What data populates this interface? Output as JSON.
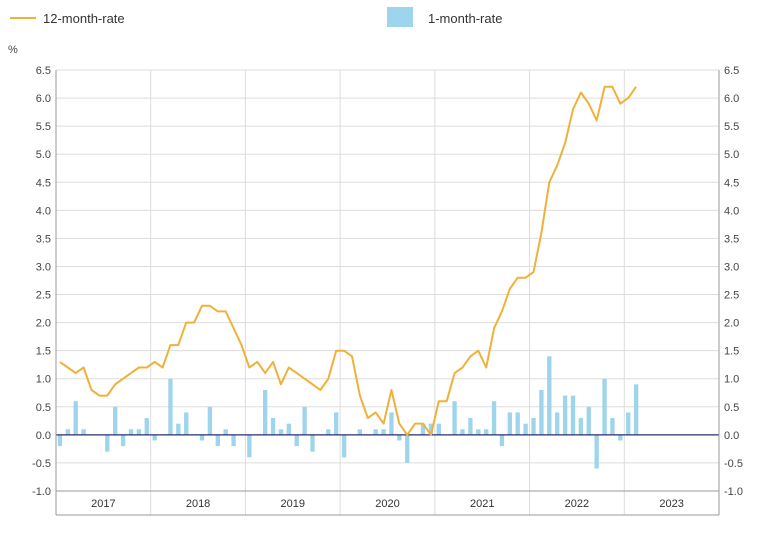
{
  "chart_data": {
    "type": "bar",
    "y_unit": "%",
    "ylim": [
      -1.0,
      6.5
    ],
    "y_ticks": [
      "-1.0",
      "-0.5",
      "0.0",
      "0.5",
      "1.0",
      "1.5",
      "2.0",
      "2.5",
      "3.0",
      "3.5",
      "4.0",
      "4.5",
      "5.0",
      "5.5",
      "6.0",
      "6.5"
    ],
    "years": [
      "2017",
      "2018",
      "2019",
      "2020",
      "2021",
      "2022",
      "2023"
    ],
    "months_per_year": 12,
    "grid": true,
    "legend_position": "top",
    "colors": {
      "line": "#f0b13b",
      "bar": "#9fd5ec",
      "zero_line": "#2b2f6b",
      "grid": "#dddddd",
      "frame": "#999999"
    },
    "series": [
      {
        "name": "12-month-rate",
        "type": "line",
        "values": [
          1.3,
          1.2,
          1.1,
          1.2,
          0.8,
          0.7,
          0.7,
          0.9,
          1.0,
          1.1,
          1.2,
          1.2,
          1.3,
          1.2,
          1.6,
          1.6,
          2.0,
          2.0,
          2.3,
          2.3,
          2.2,
          2.2,
          1.9,
          1.6,
          1.2,
          1.3,
          1.1,
          1.3,
          0.9,
          1.2,
          1.1,
          1.0,
          0.9,
          0.8,
          1.0,
          1.5,
          1.5,
          1.4,
          0.7,
          0.3,
          0.4,
          0.2,
          0.8,
          0.2,
          0.0,
          0.2,
          0.2,
          0.0,
          0.6,
          0.6,
          1.1,
          1.2,
          1.4,
          1.5,
          1.2,
          1.9,
          2.2,
          2.6,
          2.8,
          2.8,
          2.9,
          3.6,
          4.5,
          4.8,
          5.2,
          5.8,
          6.1,
          5.9,
          5.6,
          6.2,
          6.2,
          5.9,
          6.0,
          6.2
        ]
      },
      {
        "name": "1-month-rate",
        "type": "bar",
        "values": [
          -0.2,
          0.1,
          0.6,
          0.1,
          0.0,
          0.0,
          -0.3,
          0.5,
          -0.2,
          0.1,
          0.1,
          0.3,
          -0.1,
          0.0,
          1.0,
          0.2,
          0.4,
          0.0,
          -0.1,
          0.5,
          -0.2,
          0.1,
          -0.2,
          0.0,
          -0.4,
          0.0,
          0.8,
          0.3,
          0.1,
          0.2,
          -0.2,
          0.5,
          -0.3,
          0.0,
          0.1,
          0.4,
          -0.4,
          0.0,
          0.1,
          0.0,
          0.1,
          0.1,
          0.4,
          -0.1,
          -0.5,
          0.0,
          0.2,
          0.2,
          0.2,
          0.0,
          0.6,
          0.1,
          0.3,
          0.1,
          0.1,
          0.6,
          -0.2,
          0.4,
          0.4,
          0.2,
          0.3,
          0.8,
          1.4,
          0.4,
          0.7,
          0.7,
          0.3,
          0.5,
          -0.6,
          1.0,
          0.3,
          -0.1,
          0.4,
          0.9
        ]
      }
    ]
  }
}
